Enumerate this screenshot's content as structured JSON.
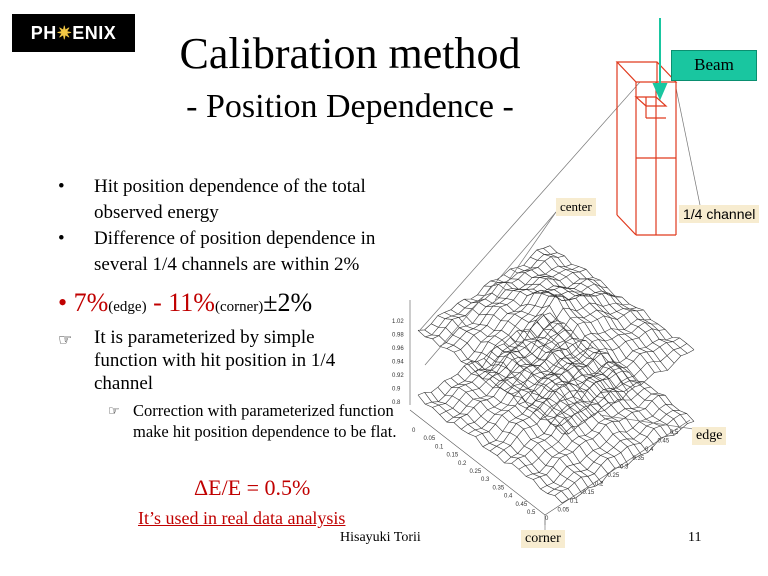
{
  "logo": {
    "pre": "PH",
    "star": "✷",
    "post": "ENIX"
  },
  "title": "Calibration method",
  "subtitle": "- Position Dependence -",
  "bullets": [
    {
      "marker": "•",
      "text": "Hit position dependence of the total observed energy"
    },
    {
      "marker": "•",
      "text": "Difference of position dependence in several 1/4 channels are within 2%"
    }
  ],
  "big_bullet": {
    "marker": "•",
    "v1": "7%",
    "l1": "(edge)",
    "sep": " - ",
    "v2": "11%",
    "l2": "(corner)",
    "tail": "±2%"
  },
  "hand_item": {
    "icon": "☞",
    "text": "It is parameterized by simple function with hit position in 1/4 channel"
  },
  "sub_hand_item": {
    "icon": "☞",
    "text": "Correction with parameterized function make hit position dependence to be flat."
  },
  "delta": "ΔE/E = 0.5%",
  "used_note": "It’s used in real data analysis",
  "author": "Hisayuki Torii",
  "page_number": "11",
  "labels": {
    "beam": "Beam",
    "center": "center",
    "quarter": "1/4 channel",
    "edge": "edge",
    "corner": "corner"
  },
  "axis_ticks": {
    "z": [
      "1.02",
      "0.98",
      "0.96",
      "0.94",
      "0.92",
      "0.9",
      "0.8"
    ],
    "left": [
      "0",
      "0.05",
      "0.1",
      "0.15",
      "0.2",
      "0.25",
      "0.3",
      "0.35",
      "0.4",
      "0.45",
      "0.5"
    ],
    "right": [
      "0",
      "0.05",
      "0.1",
      "0.15",
      "0.2",
      "0.25",
      "0.3",
      "0.35",
      "0.4",
      "0.45",
      "0.5"
    ]
  },
  "colors": {
    "accent_red": "#c00000",
    "beam_green": "#19c6a0",
    "label_bg": "#f7ecd0",
    "module_red": "#e03a1e"
  }
}
